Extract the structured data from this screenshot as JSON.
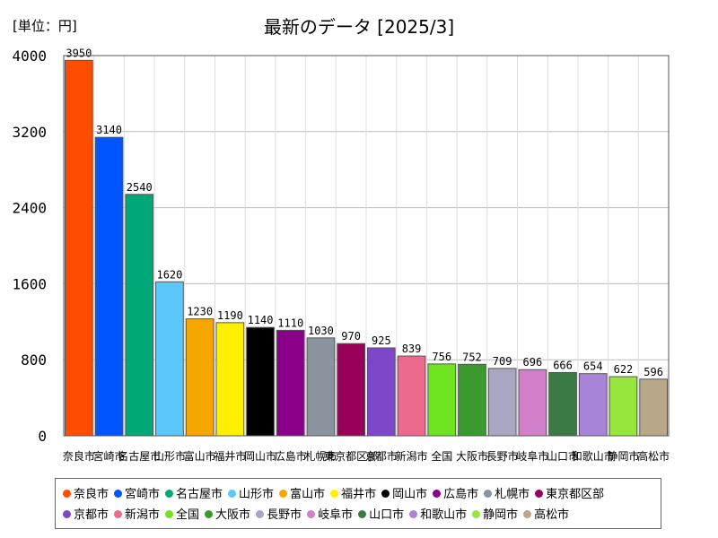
{
  "unit_label": "[単位：円]",
  "chart_data": {
    "type": "bar",
    "title": "最新のデータ [2025/3]",
    "xlabel": "",
    "ylabel": "",
    "ylim": [
      0,
      4000
    ],
    "yticks": [
      0,
      800,
      1600,
      2400,
      3200,
      4000
    ],
    "grid": true,
    "legend_position": "bottom",
    "categories": [
      "奈良市",
      "宮崎市",
      "名古屋市",
      "山形市",
      "富山市",
      "福井市",
      "岡山市",
      "広島市",
      "札幌市",
      "東京都区部",
      "京都市",
      "新潟市",
      "全国",
      "大阪市",
      "長野市",
      "岐阜市",
      "山口市",
      "和歌山市",
      "静岡市",
      "高松市"
    ],
    "values": [
      3950,
      3140,
      2540,
      1620,
      1230,
      1190,
      1140,
      1110,
      1030,
      970,
      925,
      839,
      756,
      752,
      709,
      696,
      666,
      654,
      622,
      596
    ],
    "colors": [
      "#ff4d00",
      "#0055ff",
      "#00a878",
      "#5ac8fa",
      "#f5a700",
      "#fff000",
      "#000000",
      "#8b008b",
      "#8a949f",
      "#99005a",
      "#7e46c8",
      "#ec6a8c",
      "#6fe320",
      "#3a9a2e",
      "#a8a6c0",
      "#d27fcb",
      "#3b7a44",
      "#a884d8",
      "#97e63d",
      "#b9a789"
    ]
  }
}
